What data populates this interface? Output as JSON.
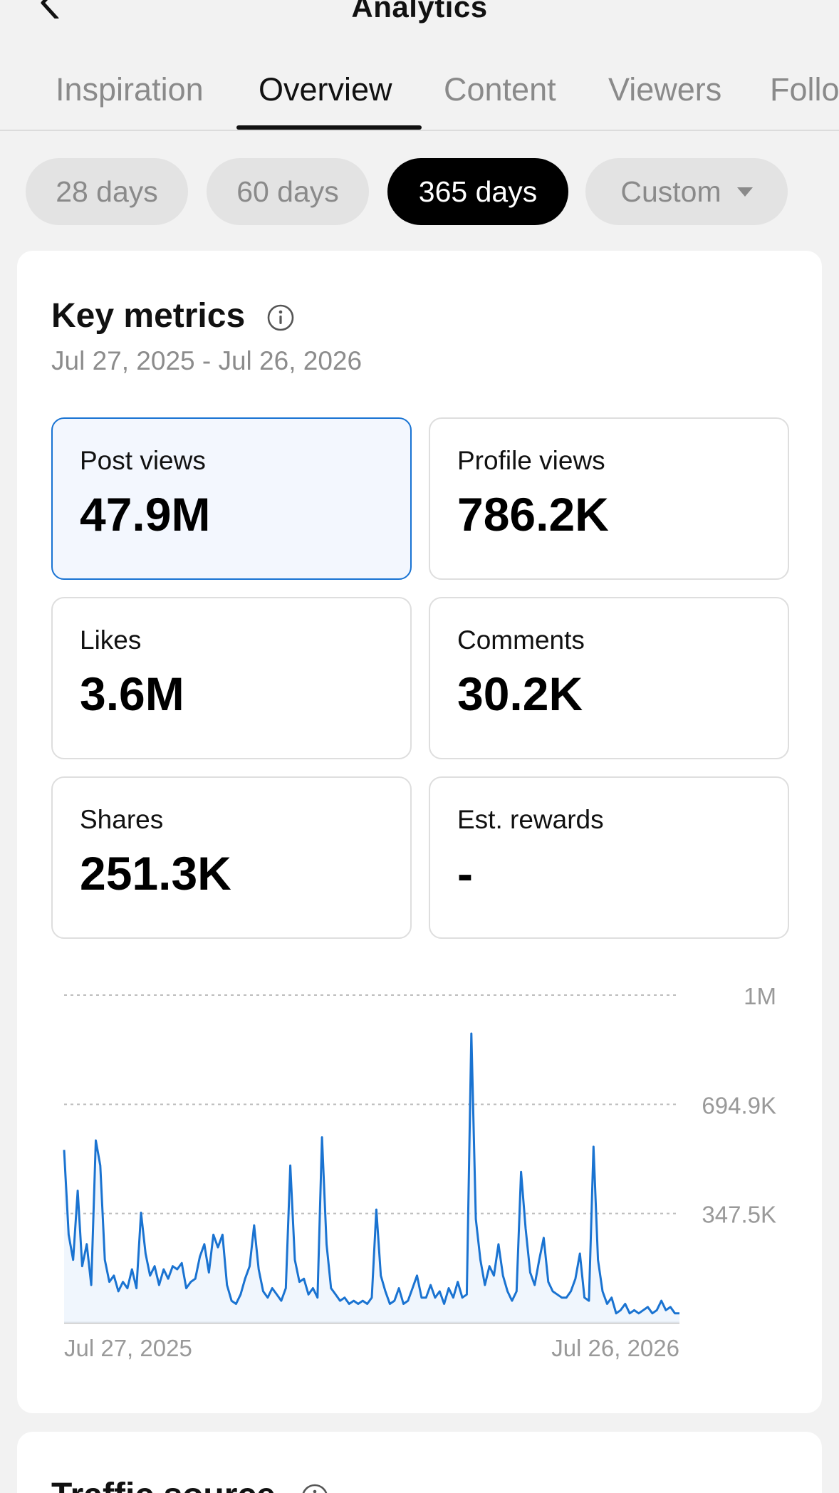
{
  "header": {
    "title": "Analytics"
  },
  "tabs": [
    {
      "label": "Inspiration"
    },
    {
      "label": "Overview"
    },
    {
      "label": "Content"
    },
    {
      "label": "Viewers"
    },
    {
      "label": "Follo"
    }
  ],
  "active_tab": "Overview",
  "period_filters": [
    {
      "label": "28 days"
    },
    {
      "label": "60 days"
    },
    {
      "label": "365 days"
    },
    {
      "label": "Custom"
    }
  ],
  "active_period": "365 days",
  "key_metrics": {
    "title": "Key metrics",
    "date_range": "Jul 27, 2025 - Jul 26, 2026",
    "metrics": [
      {
        "label": "Post views",
        "value": "47.9M"
      },
      {
        "label": "Profile views",
        "value": "786.2K"
      },
      {
        "label": "Likes",
        "value": "3.6M"
      },
      {
        "label": "Comments",
        "value": "30.2K"
      },
      {
        "label": "Shares",
        "value": "251.3K"
      },
      {
        "label": "Est. rewards",
        "value": "-"
      }
    ],
    "selected_metric": "Post views"
  },
  "chart_data": {
    "type": "line",
    "title": "",
    "xlabel": "",
    "ylabel": "",
    "y_tick_labels": [
      "1M",
      "694.9K",
      "347.5K"
    ],
    "y_ticks": [
      1042350,
      694900,
      347450
    ],
    "ylim": [
      0,
      1042350
    ],
    "x_tick_labels": [
      "Jul 27, 2025",
      "Jul 26, 2026"
    ],
    "grid": "dashed horizontal",
    "line_color": "#1a73d1",
    "series": [
      {
        "values": [
          550000,
          280000,
          200000,
          420000,
          180000,
          250000,
          120000,
          580000,
          500000,
          200000,
          130000,
          150000,
          100000,
          130000,
          110000,
          170000,
          110000,
          350000,
          220000,
          150000,
          180000,
          120000,
          170000,
          140000,
          180000,
          170000,
          190000,
          110000,
          130000,
          140000,
          210000,
          250000,
          160000,
          280000,
          240000,
          280000,
          120000,
          70000,
          60000,
          90000,
          140000,
          180000,
          310000,
          170000,
          100000,
          80000,
          110000,
          90000,
          70000,
          110000,
          500000,
          200000,
          130000,
          140000,
          90000,
          110000,
          80000,
          590000,
          250000,
          110000,
          90000,
          70000,
          80000,
          60000,
          70000,
          60000,
          70000,
          60000,
          80000,
          360000,
          150000,
          100000,
          60000,
          70000,
          110000,
          60000,
          70000,
          110000,
          150000,
          80000,
          80000,
          120000,
          80000,
          100000,
          60000,
          110000,
          80000,
          130000,
          80000,
          90000,
          920000,
          330000,
          200000,
          120000,
          180000,
          150000,
          250000,
          150000,
          100000,
          70000,
          100000,
          480000,
          300000,
          160000,
          120000,
          200000,
          270000,
          130000,
          100000,
          90000,
          80000,
          80000,
          100000,
          140000,
          220000,
          80000,
          70000,
          560000,
          200000,
          100000,
          60000,
          80000,
          30000,
          40000,
          60000,
          30000,
          40000,
          30000,
          40000,
          50000,
          30000,
          40000,
          70000,
          40000,
          50000,
          30000,
          30000
        ]
      }
    ]
  },
  "next_section": {
    "title": "Traffic source"
  }
}
